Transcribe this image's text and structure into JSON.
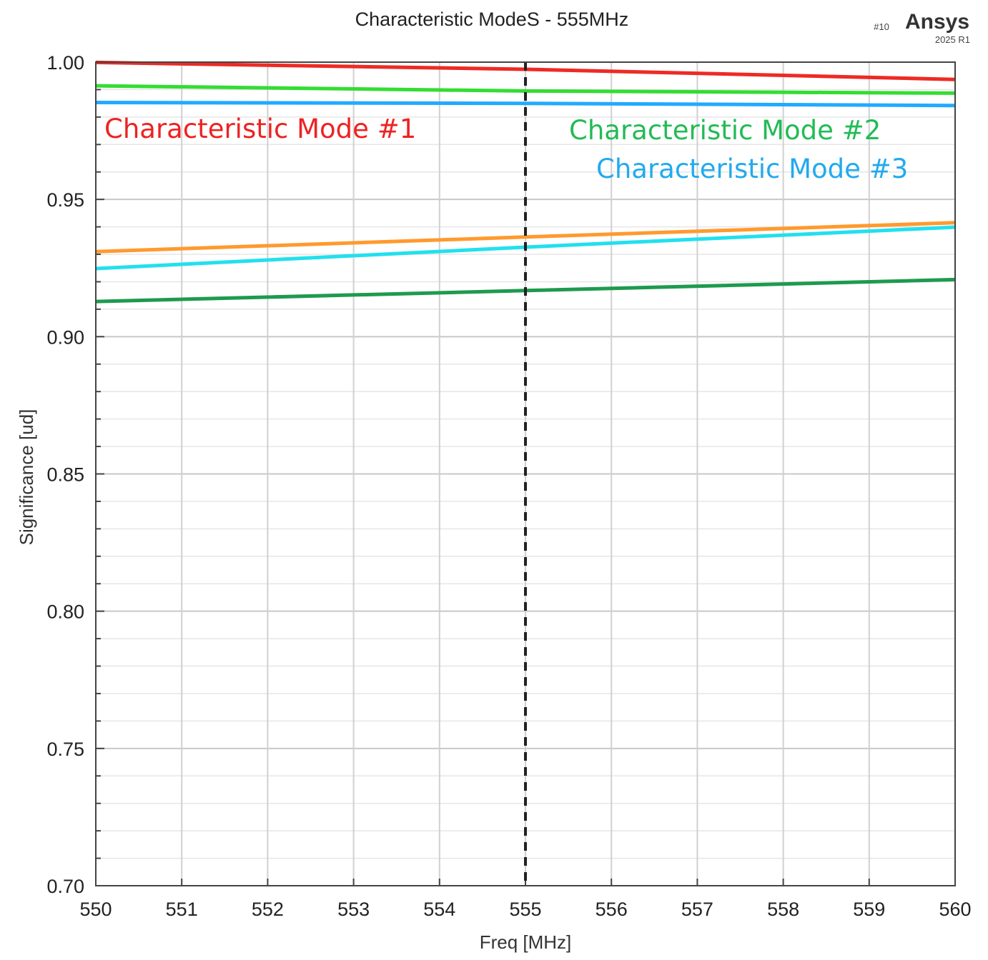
{
  "chart_data": {
    "type": "line",
    "title": "Characteristic ModeS - 555MHz",
    "xlabel": "Freq [MHz]",
    "ylabel": "Significance [ud]",
    "xlim": [
      550,
      560
    ],
    "ylim": [
      0.7,
      1.0
    ],
    "x_ticks": [
      "550",
      "551",
      "552",
      "553",
      "554",
      "555",
      "556",
      "557",
      "558",
      "559",
      "560"
    ],
    "y_ticks": [
      "1.00",
      "0.95",
      "0.90",
      "0.85",
      "0.80",
      "0.75",
      "0.70"
    ],
    "grid": true,
    "marker_line": {
      "x": 555,
      "style": "dashed",
      "color": "#222222"
    },
    "series": [
      {
        "x": [
          550,
          555,
          560
        ],
        "values": [
          0.9999,
          0.9974,
          0.9937
        ],
        "color": "#ee2a24"
      },
      {
        "x": [
          550,
          555,
          560
        ],
        "values": [
          0.9914,
          0.9895,
          0.9887
        ],
        "color": "#33dd33"
      },
      {
        "x": [
          550,
          555,
          560
        ],
        "values": [
          0.9853,
          0.985,
          0.9842
        ],
        "color": "#22aaff"
      },
      {
        "x": [
          550,
          555,
          560
        ],
        "values": [
          0.931,
          0.9363,
          0.9415
        ],
        "color": "#ff9a2e"
      },
      {
        "x": [
          550,
          555,
          560
        ],
        "values": [
          0.9248,
          0.9326,
          0.9399
        ],
        "color": "#22e0ee"
      },
      {
        "x": [
          550,
          555,
          560
        ],
        "values": [
          0.9128,
          0.9168,
          0.9208
        ],
        "color": "#1e9a4e"
      }
    ],
    "annotations": [
      {
        "text": "Characteristic Mode #1",
        "color": "#ee2222"
      },
      {
        "text": "Characteristic Mode #2",
        "color": "#22bb55"
      },
      {
        "text": "Characteristic Mode #3",
        "color": "#22aaee"
      }
    ]
  },
  "brand": {
    "name": "Ansys",
    "version": "2025 R1",
    "badge": "#10"
  }
}
